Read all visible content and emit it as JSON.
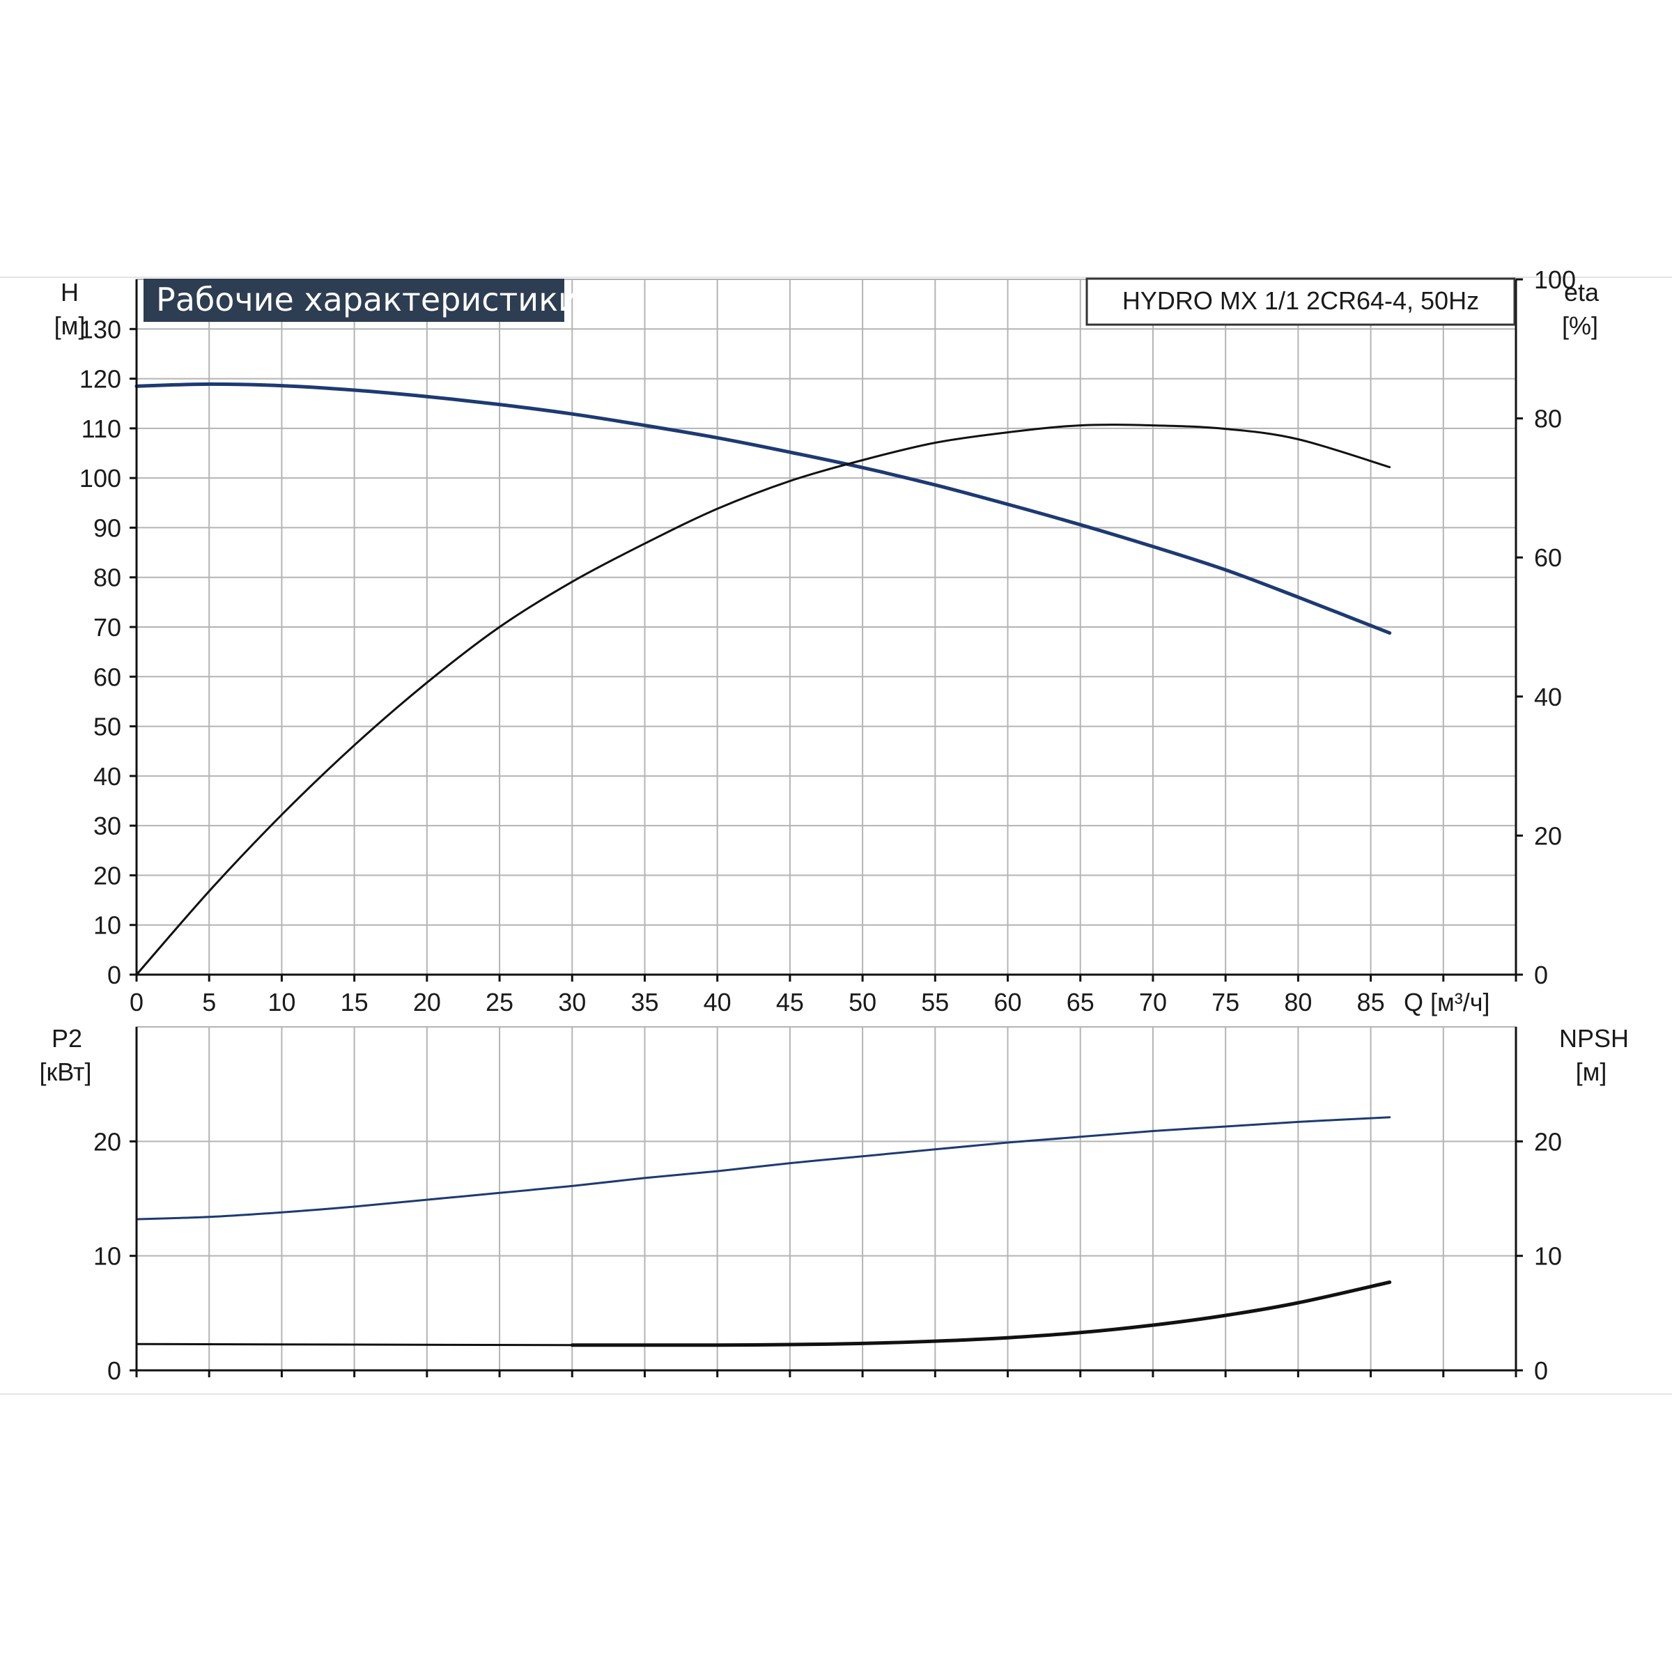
{
  "chart_data": {
    "type": "line",
    "title": "Рабочие характеристики",
    "model": "HYDRO MX 1/1 2CR64-4, 50Hz",
    "colors": {
      "blue": "#1d3a72",
      "black": "#111111",
      "grid": "#b4b4b4",
      "title_bg": "#2d3d52"
    },
    "x_axis": {
      "label": "Q [м³/ч]",
      "range": [
        0,
        95
      ],
      "ticks": [
        0,
        5,
        10,
        15,
        20,
        25,
        30,
        35,
        40,
        45,
        50,
        55,
        60,
        65,
        70,
        75,
        80,
        85
      ],
      "grid_step": 5
    },
    "top_panel": {
      "left_axis": {
        "label": "H",
        "unit": "[м]",
        "range": [
          0,
          140
        ],
        "ticks": [
          0,
          10,
          20,
          30,
          40,
          50,
          60,
          70,
          80,
          90,
          100,
          110,
          120,
          130
        ]
      },
      "right_axis": {
        "label": "eta",
        "unit": "[%]",
        "range": [
          0,
          100
        ],
        "ticks": [
          0,
          20,
          40,
          60,
          80,
          100
        ]
      },
      "series": [
        {
          "id": "H",
          "axis": "left",
          "color": "blue",
          "width": 5,
          "points": [
            [
              0,
              118.5
            ],
            [
              5,
              118.9
            ],
            [
              10,
              118.6
            ],
            [
              15,
              117.7
            ],
            [
              20,
              116.4
            ],
            [
              25,
              114.8
            ],
            [
              30,
              112.9
            ],
            [
              35,
              110.6
            ],
            [
              40,
              108.1
            ],
            [
              45,
              105.2
            ],
            [
              50,
              102.1
            ],
            [
              55,
              98.6
            ],
            [
              60,
              94.7
            ],
            [
              65,
              90.6
            ],
            [
              70,
              86.2
            ],
            [
              75,
              81.5
            ],
            [
              80,
              76.0
            ],
            [
              86.3,
              68.8
            ]
          ]
        },
        {
          "id": "eta",
          "axis": "right",
          "color": "black",
          "width": 3,
          "points": [
            [
              0,
              0
            ],
            [
              5,
              12
            ],
            [
              10,
              23
            ],
            [
              15,
              33
            ],
            [
              20,
              42
            ],
            [
              25,
              50
            ],
            [
              30,
              56.5
            ],
            [
              35,
              62
            ],
            [
              40,
              67
            ],
            [
              45,
              71
            ],
            [
              50,
              74
            ],
            [
              55,
              76.5
            ],
            [
              60,
              78
            ],
            [
              65,
              79
            ],
            [
              70,
              79
            ],
            [
              75,
              78.5
            ],
            [
              80,
              77
            ],
            [
              86.3,
              73
            ]
          ]
        }
      ]
    },
    "bottom_panel": {
      "left_axis": {
        "label": "P2",
        "unit": "[кВт]",
        "range": [
          0,
          30
        ],
        "ticks": [
          0,
          10,
          20
        ]
      },
      "right_axis": {
        "label": "NPSH",
        "unit": "[м]",
        "range": [
          0,
          30
        ],
        "ticks": [
          0,
          10,
          20
        ]
      },
      "series": [
        {
          "id": "P2",
          "axis": "left",
          "color": "blue",
          "width": 3,
          "points": [
            [
              0,
              13.2
            ],
            [
              5,
              13.4
            ],
            [
              10,
              13.8
            ],
            [
              15,
              14.3
            ],
            [
              20,
              14.9
            ],
            [
              25,
              15.5
            ],
            [
              30,
              16.1
            ],
            [
              35,
              16.8
            ],
            [
              40,
              17.4
            ],
            [
              45,
              18.1
            ],
            [
              50,
              18.7
            ],
            [
              55,
              19.3
            ],
            [
              60,
              19.9
            ],
            [
              65,
              20.4
            ],
            [
              70,
              20.9
            ],
            [
              75,
              21.3
            ],
            [
              80,
              21.7
            ],
            [
              86.3,
              22.1
            ]
          ]
        },
        {
          "id": "NPSH_flat",
          "axis": "right",
          "color": "black",
          "width": 3,
          "points": [
            [
              0,
              2.3
            ],
            [
              30,
              2.2
            ]
          ]
        },
        {
          "id": "NPSH",
          "axis": "right",
          "color": "black",
          "width": 5,
          "points": [
            [
              30,
              2.2
            ],
            [
              35,
              2.2
            ],
            [
              40,
              2.2
            ],
            [
              45,
              2.25
            ],
            [
              50,
              2.35
            ],
            [
              55,
              2.55
            ],
            [
              60,
              2.85
            ],
            [
              65,
              3.3
            ],
            [
              70,
              3.95
            ],
            [
              75,
              4.8
            ],
            [
              80,
              5.9
            ],
            [
              86.3,
              7.7
            ]
          ]
        }
      ]
    }
  }
}
